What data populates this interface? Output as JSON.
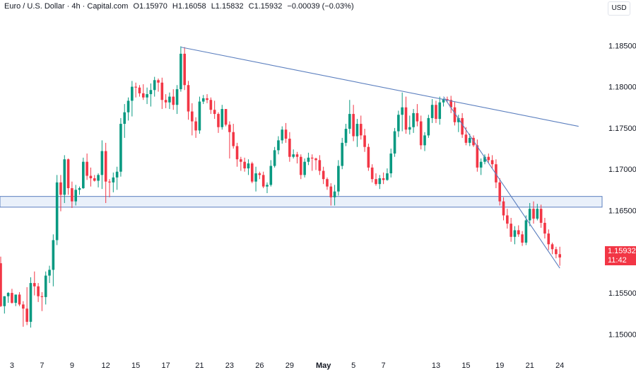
{
  "legend": {
    "symbol": "Euro / U.S. Dollar · 4h · Capital.com",
    "open": "O1.15970",
    "high": "H1.16058",
    "low": "L1.15832",
    "close": "C1.15932",
    "change": "−0.00039 (−0.03%)"
  },
  "currency": "USD",
  "last_price": {
    "value": "1.15932",
    "countdown": "11:42",
    "color": "#f23645"
  },
  "colors": {
    "up": "#089981",
    "down": "#f23645",
    "line": "#5b7fbf",
    "zone_fill": "#dbe6f7"
  },
  "chart_data": {
    "type": "candlestick",
    "ylim": [
      1.1472,
      1.1888
    ],
    "y_ticks": [
      "1.18500",
      "1.18000",
      "1.17500",
      "1.17000",
      "1.16500",
      "1.16000",
      "1.15500",
      "1.15000"
    ],
    "x_ticks": [
      "3",
      "7",
      "9",
      "12",
      "15",
      "17",
      "21",
      "23",
      "26",
      "29",
      "May",
      "5",
      "7",
      "13",
      "15",
      "19",
      "21",
      "24"
    ],
    "candles": [
      [
        1.1586,
        1.1594,
        1.1533,
        1.1534
      ],
      [
        1.1534,
        1.1546,
        1.1525,
        1.1546
      ],
      [
        1.1546,
        1.1551,
        1.1538,
        1.155
      ],
      [
        1.155,
        1.1555,
        1.1537,
        1.1538
      ],
      [
        1.1538,
        1.1548,
        1.1534,
        1.1548
      ],
      [
        1.1548,
        1.1551,
        1.1534,
        1.1536
      ],
      [
        1.1536,
        1.154,
        1.1509,
        1.1531
      ],
      [
        1.1531,
        1.1557,
        1.1511,
        1.1515
      ],
      [
        1.1515,
        1.1569,
        1.1508,
        1.1562
      ],
      [
        1.1562,
        1.1576,
        1.1547,
        1.1558
      ],
      [
        1.1558,
        1.1562,
        1.1539,
        1.1546
      ],
      [
        1.1546,
        1.1551,
        1.1528,
        1.1545
      ],
      [
        1.1545,
        1.1576,
        1.1536,
        1.1571
      ],
      [
        1.1571,
        1.1583,
        1.1562,
        1.1578
      ],
      [
        1.1578,
        1.1621,
        1.1558,
        1.1614
      ],
      [
        1.1614,
        1.1693,
        1.1608,
        1.1684
      ],
      [
        1.1684,
        1.1693,
        1.1649,
        1.1669
      ],
      [
        1.1669,
        1.1717,
        1.1659,
        1.1712
      ],
      [
        1.1712,
        1.1713,
        1.1669,
        1.1677
      ],
      [
        1.1677,
        1.1685,
        1.1653,
        1.1661
      ],
      [
        1.1661,
        1.1681,
        1.1656,
        1.1675
      ],
      [
        1.1675,
        1.1679,
        1.1669,
        1.1677
      ],
      [
        1.1677,
        1.1714,
        1.1676,
        1.1709
      ],
      [
        1.1709,
        1.1719,
        1.1687,
        1.1692
      ],
      [
        1.1692,
        1.1702,
        1.1679,
        1.1689
      ],
      [
        1.1689,
        1.1693,
        1.1685,
        1.1686
      ],
      [
        1.1686,
        1.1695,
        1.1678,
        1.1693
      ],
      [
        1.1693,
        1.1735,
        1.1676,
        1.1722
      ],
      [
        1.1722,
        1.1732,
        1.1659,
        1.1685
      ],
      [
        1.1685,
        1.1688,
        1.1666,
        1.1684
      ],
      [
        1.1684,
        1.1696,
        1.1672,
        1.169
      ],
      [
        1.169,
        1.1703,
        1.1675,
        1.1697
      ],
      [
        1.1697,
        1.1762,
        1.1691,
        1.1755
      ],
      [
        1.1755,
        1.1779,
        1.1738,
        1.1769
      ],
      [
        1.1769,
        1.1787,
        1.1759,
        1.1783
      ],
      [
        1.1783,
        1.1807,
        1.1764,
        1.18
      ],
      [
        1.18,
        1.1805,
        1.1787,
        1.1799
      ],
      [
        1.1799,
        1.1802,
        1.1788,
        1.1792
      ],
      [
        1.1792,
        1.1803,
        1.1784,
        1.1787
      ],
      [
        1.1787,
        1.1799,
        1.1779,
        1.1791
      ],
      [
        1.1791,
        1.1804,
        1.1776,
        1.1796
      ],
      [
        1.1796,
        1.1812,
        1.1788,
        1.1808
      ],
      [
        1.1808,
        1.181,
        1.1794,
        1.1805
      ],
      [
        1.1805,
        1.1811,
        1.1773,
        1.1784
      ],
      [
        1.1784,
        1.1791,
        1.1774,
        1.1781
      ],
      [
        1.1781,
        1.1793,
        1.1773,
        1.1788
      ],
      [
        1.1788,
        1.1797,
        1.1772,
        1.1778
      ],
      [
        1.1778,
        1.1802,
        1.1767,
        1.1797
      ],
      [
        1.1797,
        1.1849,
        1.1794,
        1.184
      ],
      [
        1.184,
        1.1848,
        1.1796,
        1.1802
      ],
      [
        1.1802,
        1.1807,
        1.176,
        1.177
      ],
      [
        1.177,
        1.178,
        1.1741,
        1.1758
      ],
      [
        1.1758,
        1.1763,
        1.1738,
        1.1747
      ],
      [
        1.1747,
        1.1788,
        1.1743,
        1.1782
      ],
      [
        1.1782,
        1.179,
        1.1779,
        1.1786
      ],
      [
        1.1786,
        1.1791,
        1.178,
        1.1784
      ],
      [
        1.1784,
        1.1787,
        1.1767,
        1.1772
      ],
      [
        1.1772,
        1.1783,
        1.1761,
        1.1767
      ],
      [
        1.1767,
        1.1769,
        1.1744,
        1.1751
      ],
      [
        1.1751,
        1.1778,
        1.1748,
        1.1773
      ],
      [
        1.1773,
        1.1773,
        1.1752,
        1.1754
      ],
      [
        1.1754,
        1.1758,
        1.1713,
        1.1745
      ],
      [
        1.1745,
        1.1755,
        1.1725,
        1.1728
      ],
      [
        1.1728,
        1.1732,
        1.1703,
        1.1712
      ],
      [
        1.1712,
        1.1715,
        1.1698,
        1.1709
      ],
      [
        1.1709,
        1.1714,
        1.1697,
        1.1701
      ],
      [
        1.1701,
        1.1712,
        1.1693,
        1.1707
      ],
      [
        1.1707,
        1.1709,
        1.1683,
        1.1685
      ],
      [
        1.1685,
        1.1703,
        1.1673,
        1.1695
      ],
      [
        1.1695,
        1.1697,
        1.1688,
        1.1693
      ],
      [
        1.1693,
        1.1697,
        1.1677,
        1.1679
      ],
      [
        1.1679,
        1.1684,
        1.1671,
        1.1681
      ],
      [
        1.1681,
        1.1711,
        1.1679,
        1.1704
      ],
      [
        1.1704,
        1.1727,
        1.1702,
        1.1723
      ],
      [
        1.1723,
        1.174,
        1.1718,
        1.1735
      ],
      [
        1.1735,
        1.1752,
        1.1731,
        1.1748
      ],
      [
        1.1748,
        1.1756,
        1.1732,
        1.1737
      ],
      [
        1.1737,
        1.1745,
        1.1709,
        1.1715
      ],
      [
        1.1715,
        1.1724,
        1.1713,
        1.1718
      ],
      [
        1.1718,
        1.1721,
        1.1707,
        1.1715
      ],
      [
        1.1715,
        1.1718,
        1.1688,
        1.1693
      ],
      [
        1.1693,
        1.1713,
        1.169,
        1.1709
      ],
      [
        1.1709,
        1.172,
        1.1705,
        1.1714
      ],
      [
        1.1714,
        1.1718,
        1.1698,
        1.1713
      ],
      [
        1.1713,
        1.1714,
        1.1699,
        1.1711
      ],
      [
        1.1711,
        1.1717,
        1.1693,
        1.1698
      ],
      [
        1.1698,
        1.1703,
        1.1682,
        1.1688
      ],
      [
        1.1688,
        1.169,
        1.1675,
        1.1679
      ],
      [
        1.1679,
        1.1683,
        1.1656,
        1.1666
      ],
      [
        1.1666,
        1.1681,
        1.1656,
        1.1673
      ],
      [
        1.1673,
        1.1711,
        1.1668,
        1.1704
      ],
      [
        1.1704,
        1.1738,
        1.17,
        1.1732
      ],
      [
        1.1732,
        1.1755,
        1.1728,
        1.1749
      ],
      [
        1.1749,
        1.1784,
        1.1743,
        1.1767
      ],
      [
        1.1767,
        1.1778,
        1.1734,
        1.174
      ],
      [
        1.174,
        1.1761,
        1.1727,
        1.1755
      ],
      [
        1.1755,
        1.1765,
        1.1736,
        1.1741
      ],
      [
        1.1741,
        1.1749,
        1.1721,
        1.1727
      ],
      [
        1.1727,
        1.1731,
        1.1698,
        1.1702
      ],
      [
        1.1702,
        1.1706,
        1.1684,
        1.1688
      ],
      [
        1.1688,
        1.1695,
        1.168,
        1.1682
      ],
      [
        1.1682,
        1.1693,
        1.1676,
        1.1689
      ],
      [
        1.1689,
        1.1696,
        1.1682,
        1.1687
      ],
      [
        1.1687,
        1.1701,
        1.1686,
        1.1695
      ],
      [
        1.1695,
        1.1725,
        1.169,
        1.1719
      ],
      [
        1.1719,
        1.175,
        1.1715,
        1.1746
      ],
      [
        1.1746,
        1.1771,
        1.1739,
        1.1766
      ],
      [
        1.1766,
        1.1793,
        1.1746,
        1.1775
      ],
      [
        1.1775,
        1.1788,
        1.1743,
        1.1748
      ],
      [
        1.1748,
        1.1765,
        1.1742,
        1.1751
      ],
      [
        1.1751,
        1.1773,
        1.1744,
        1.1768
      ],
      [
        1.1768,
        1.1779,
        1.1752,
        1.1758
      ],
      [
        1.1758,
        1.1765,
        1.1724,
        1.1729
      ],
      [
        1.1729,
        1.1745,
        1.1722,
        1.1741
      ],
      [
        1.1741,
        1.1766,
        1.1738,
        1.1762
      ],
      [
        1.1762,
        1.1785,
        1.1756,
        1.1778
      ],
      [
        1.1778,
        1.1783,
        1.1756,
        1.1761
      ],
      [
        1.1761,
        1.1788,
        1.1754,
        1.1781
      ],
      [
        1.1781,
        1.1786,
        1.1776,
        1.1785
      ],
      [
        1.1785,
        1.1788,
        1.1781,
        1.1784
      ],
      [
        1.1784,
        1.1789,
        1.1768,
        1.1775
      ],
      [
        1.1775,
        1.1782,
        1.1753,
        1.1757
      ],
      [
        1.1757,
        1.1766,
        1.1745,
        1.1762
      ],
      [
        1.1762,
        1.1768,
        1.1738,
        1.1742
      ],
      [
        1.1742,
        1.1751,
        1.1729,
        1.1732
      ],
      [
        1.1732,
        1.1743,
        1.1728,
        1.1738
      ],
      [
        1.1738,
        1.1741,
        1.1727,
        1.1729
      ],
      [
        1.1729,
        1.1736,
        1.1697,
        1.1702
      ],
      [
        1.1702,
        1.1713,
        1.1693,
        1.1709
      ],
      [
        1.1709,
        1.1718,
        1.1706,
        1.1715
      ],
      [
        1.1715,
        1.1719,
        1.1708,
        1.1711
      ],
      [
        1.1711,
        1.1717,
        1.1701,
        1.1706
      ],
      [
        1.1706,
        1.1712,
        1.1677,
        1.1684
      ],
      [
        1.1684,
        1.1689,
        1.1656,
        1.1661
      ],
      [
        1.1661,
        1.1666,
        1.1638,
        1.1644
      ],
      [
        1.1644,
        1.1652,
        1.1628,
        1.1634
      ],
      [
        1.1634,
        1.1641,
        1.1612,
        1.1618
      ],
      [
        1.1618,
        1.1631,
        1.1609,
        1.1626
      ],
      [
        1.1626,
        1.1632,
        1.1618,
        1.1621
      ],
      [
        1.1621,
        1.1625,
        1.1607,
        1.1611
      ],
      [
        1.1611,
        1.1644,
        1.1608,
        1.1638
      ],
      [
        1.1638,
        1.1659,
        1.1631,
        1.1652
      ],
      [
        1.1652,
        1.1661,
        1.1634,
        1.164
      ],
      [
        1.164,
        1.1658,
        1.1638,
        1.1652
      ],
      [
        1.1652,
        1.1657,
        1.1629,
        1.1635
      ],
      [
        1.1635,
        1.1641,
        1.1616,
        1.1622
      ],
      [
        1.1622,
        1.1627,
        1.1602,
        1.1609
      ],
      [
        1.1609,
        1.1611,
        1.1597,
        1.1603
      ],
      [
        1.1603,
        1.1606,
        1.1592,
        1.1597
      ],
      [
        1.1597,
        1.1606,
        1.1583,
        1.1593
      ]
    ],
    "tick_positions": [
      3,
      11,
      19,
      28,
      36,
      44,
      53,
      61,
      69,
      77,
      86,
      94,
      102,
      116,
      124,
      133,
      141,
      149
    ],
    "support_zone": [
      1.1654,
      1.1667
    ],
    "trendlines": [
      {
        "from": [
          48,
          1.1848
        ],
        "to": [
          154,
          1.1752
        ]
      },
      {
        "from": [
          118,
          1.1788
        ],
        "to": [
          149,
          1.158
        ]
      }
    ],
    "grid": false
  }
}
